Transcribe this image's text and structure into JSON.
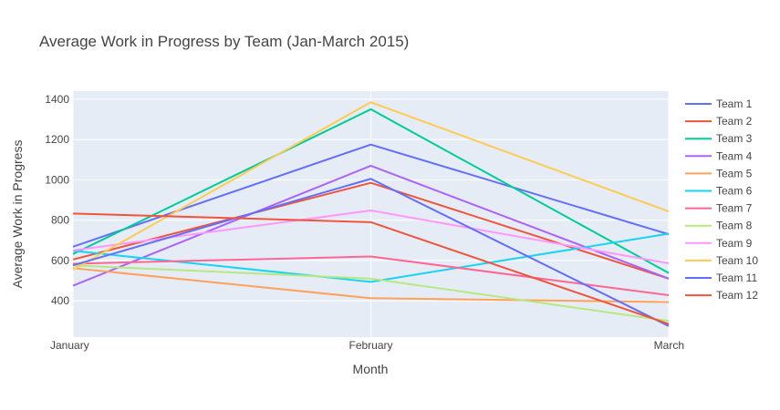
{
  "chart_data": {
    "type": "line",
    "title": "Average Work in Progress by Team (Jan-March 2015)",
    "xlabel": "Month",
    "ylabel": "Average Work in Progress",
    "categories": [
      "January",
      "February",
      "March"
    ],
    "ylim": [
      220,
      1440
    ],
    "y_ticks": [
      400,
      600,
      800,
      1000,
      1200,
      1400
    ],
    "grid": true,
    "legend_position": "right",
    "plot_background": "#e5ecf6",
    "series": [
      {
        "name": "Team 1",
        "color": "#636efa",
        "values": [
          668,
          1175,
          730
        ]
      },
      {
        "name": "Team 2",
        "color": "#ef553b",
        "values": [
          605,
          985,
          510
        ]
      },
      {
        "name": "Team 3",
        "color": "#00cc96",
        "values": [
          632,
          1350,
          538
        ]
      },
      {
        "name": "Team 4",
        "color": "#ab63fa",
        "values": [
          475,
          1070,
          510
        ]
      },
      {
        "name": "Team 5",
        "color": "#ffa15a",
        "values": [
          562,
          413,
          394
        ]
      },
      {
        "name": "Team 6",
        "color": "#19d3f3",
        "values": [
          648,
          494,
          733
        ]
      },
      {
        "name": "Team 7",
        "color": "#ff6692",
        "values": [
          584,
          620,
          428
        ]
      },
      {
        "name": "Team 8",
        "color": "#b6e880",
        "values": [
          576,
          510,
          300
        ]
      },
      {
        "name": "Team 9",
        "color": "#ff97ff",
        "values": [
          650,
          848,
          586
        ]
      },
      {
        "name": "Team 10",
        "color": "#fecb52",
        "values": [
          555,
          1385,
          843
        ]
      },
      {
        "name": "Team 11",
        "color": "#636efa",
        "values": [
          576,
          1005,
          275
        ]
      },
      {
        "name": "Team 12",
        "color": "#ef553b",
        "values": [
          833,
          790,
          285
        ]
      }
    ]
  }
}
